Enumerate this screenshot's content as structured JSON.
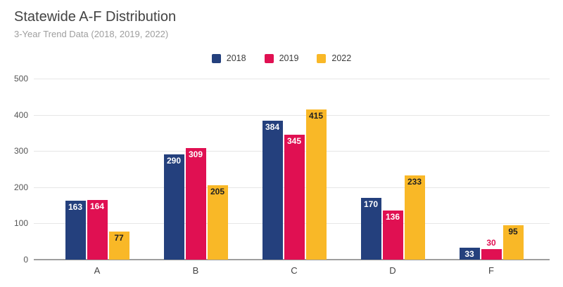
{
  "header": {
    "title": "Statewide A-F Distribution",
    "subtitle": "3-Year Trend Data (2018, 2019, 2022)"
  },
  "chart_data": {
    "type": "bar",
    "title": "Statewide A-F Distribution",
    "subtitle": "3-Year Trend Data (2018, 2019, 2022)",
    "xlabel": "",
    "ylabel": "",
    "categories": [
      "A",
      "B",
      "C",
      "D",
      "F"
    ],
    "series": [
      {
        "name": "2018",
        "color": "#24407D",
        "label_color": "#FFFFFF",
        "values": [
          163,
          290,
          384,
          170,
          33
        ]
      },
      {
        "name": "2019",
        "color": "#E01052",
        "label_color": "#FFFFFF",
        "values": [
          164,
          309,
          345,
          136,
          30
        ]
      },
      {
        "name": "2022",
        "color": "#F9B827",
        "label_color": "#212121",
        "values": [
          77,
          205,
          415,
          233,
          95
        ]
      }
    ],
    "ylim": [
      0,
      500
    ],
    "yticks": [
      0,
      100,
      200,
      300,
      400,
      500
    ],
    "grid": true,
    "legend_position": "top-center",
    "colors": {
      "title_text": "#424242",
      "subtitle_text": "#9E9E9E",
      "axis_text": "#555555",
      "gridline": "#E6E6E6",
      "baseline": "#9E9E9E",
      "background": "#FFFFFF"
    }
  }
}
